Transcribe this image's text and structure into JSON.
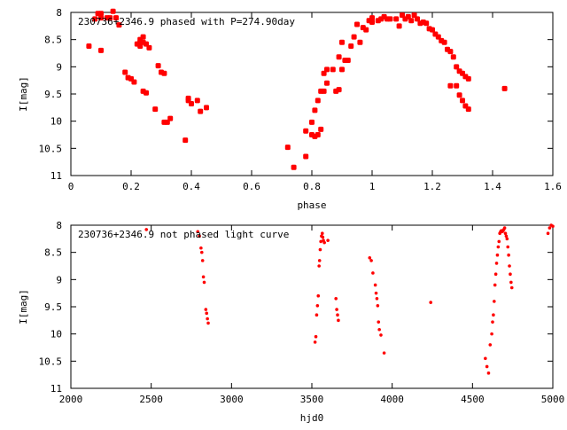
{
  "point_color": "#ff0000",
  "axis_color": "#000000",
  "chart_data": [
    {
      "type": "scatter",
      "title": "230736+2346.9 phased with P=274.90day",
      "xlabel": "phase",
      "ylabel": "I[mag]",
      "xlim": [
        0,
        1.6
      ],
      "ylim": [
        11,
        8
      ],
      "y_inverted": true,
      "grid": false,
      "marker": "large",
      "xticks": [
        "0",
        "0.2",
        "0.4",
        "0.6",
        "0.8",
        "1",
        "1.2",
        "1.4",
        "1.6"
      ],
      "yticks": [
        "8",
        "8.5",
        "9",
        "9.5",
        "10",
        "10.5",
        "11"
      ],
      "xtick_values": [
        0,
        0.2,
        0.4,
        0.6,
        0.8,
        1.0,
        1.2,
        1.4,
        1.6
      ],
      "ytick_values": [
        8,
        8.5,
        9,
        9.5,
        10,
        10.5,
        11
      ],
      "points": [
        [
          0.06,
          8.62
        ],
        [
          0.08,
          8.12
        ],
        [
          0.09,
          8.02
        ],
        [
          0.1,
          8.02
        ],
        [
          0.1,
          8.1
        ],
        [
          0.1,
          8.7
        ],
        [
          0.12,
          8.1
        ],
        [
          0.13,
          8.1
        ],
        [
          0.14,
          7.98
        ],
        [
          0.15,
          8.1
        ],
        [
          0.16,
          8.23
        ],
        [
          0.18,
          9.1
        ],
        [
          0.19,
          9.2
        ],
        [
          0.2,
          9.22
        ],
        [
          0.21,
          9.28
        ],
        [
          0.22,
          8.58
        ],
        [
          0.23,
          8.5
        ],
        [
          0.23,
          8.62
        ],
        [
          0.23,
          8.55
        ],
        [
          0.24,
          8.45
        ],
        [
          0.24,
          8.55
        ],
        [
          0.24,
          9.45
        ],
        [
          0.25,
          8.58
        ],
        [
          0.25,
          9.48
        ],
        [
          0.26,
          8.65
        ],
        [
          0.28,
          9.78
        ],
        [
          0.29,
          8.98
        ],
        [
          0.3,
          9.1
        ],
        [
          0.31,
          10.02
        ],
        [
          0.31,
          9.12
        ],
        [
          0.32,
          10.02
        ],
        [
          0.33,
          9.95
        ],
        [
          0.38,
          10.35
        ],
        [
          0.39,
          9.58
        ],
        [
          0.39,
          9.62
        ],
        [
          0.4,
          9.68
        ],
        [
          0.42,
          9.62
        ],
        [
          0.43,
          9.82
        ],
        [
          0.45,
          9.75
        ],
        [
          0.72,
          10.48
        ],
        [
          0.74,
          10.85
        ],
        [
          0.78,
          10.65
        ],
        [
          0.78,
          10.18
        ],
        [
          0.8,
          10.02
        ],
        [
          0.8,
          10.25
        ],
        [
          0.81,
          10.28
        ],
        [
          0.81,
          9.8
        ],
        [
          0.82,
          9.62
        ],
        [
          0.82,
          10.25
        ],
        [
          0.83,
          10.15
        ],
        [
          0.83,
          9.45
        ],
        [
          0.84,
          9.45
        ],
        [
          0.84,
          9.12
        ],
        [
          0.85,
          9.3
        ],
        [
          0.85,
          9.05
        ],
        [
          0.87,
          9.05
        ],
        [
          0.88,
          9.45
        ],
        [
          0.89,
          9.42
        ],
        [
          0.89,
          8.82
        ],
        [
          0.9,
          8.55
        ],
        [
          0.9,
          9.05
        ],
        [
          0.91,
          8.88
        ],
        [
          0.92,
          8.88
        ],
        [
          0.93,
          8.62
        ],
        [
          0.94,
          8.45
        ],
        [
          0.95,
          8.22
        ],
        [
          0.96,
          8.55
        ],
        [
          0.97,
          8.28
        ],
        [
          0.98,
          8.32
        ],
        [
          0.99,
          8.15
        ],
        [
          1.0,
          8.1
        ],
        [
          1.0,
          8.18
        ],
        [
          1.02,
          8.15
        ],
        [
          1.03,
          8.12
        ],
        [
          1.04,
          8.08
        ],
        [
          1.05,
          8.12
        ],
        [
          1.06,
          8.12
        ],
        [
          1.08,
          8.12
        ],
        [
          1.09,
          8.25
        ],
        [
          1.1,
          8.05
        ],
        [
          1.11,
          8.12
        ],
        [
          1.12,
          8.08
        ],
        [
          1.13,
          8.15
        ],
        [
          1.14,
          8.05
        ],
        [
          1.15,
          8.12
        ],
        [
          1.16,
          8.2
        ],
        [
          1.17,
          8.18
        ],
        [
          1.18,
          8.2
        ],
        [
          1.19,
          8.3
        ],
        [
          1.2,
          8.32
        ],
        [
          1.21,
          8.4
        ],
        [
          1.22,
          8.45
        ],
        [
          1.23,
          8.52
        ],
        [
          1.24,
          8.55
        ],
        [
          1.25,
          8.68
        ],
        [
          1.26,
          8.72
        ],
        [
          1.26,
          9.35
        ],
        [
          1.27,
          8.82
        ],
        [
          1.28,
          9.35
        ],
        [
          1.28,
          9.0
        ],
        [
          1.29,
          9.52
        ],
        [
          1.29,
          9.08
        ],
        [
          1.3,
          9.62
        ],
        [
          1.3,
          9.12
        ],
        [
          1.31,
          9.72
        ],
        [
          1.31,
          9.18
        ],
        [
          1.32,
          9.78
        ],
        [
          1.32,
          9.22
        ],
        [
          1.44,
          9.4
        ]
      ]
    },
    {
      "type": "scatter",
      "title": "230736+2346.9 not phased light curve",
      "xlabel": "hjd0",
      "ylabel": "I[mag]",
      "xlim": [
        2000,
        5000
      ],
      "ylim": [
        11,
        8
      ],
      "y_inverted": true,
      "grid": false,
      "marker": "small",
      "xticks": [
        "2000",
        "2500",
        "3000",
        "3500",
        "4000",
        "4500",
        "5000"
      ],
      "yticks": [
        "8",
        "8.5",
        "9",
        "9.5",
        "10",
        "10.5",
        "11"
      ],
      "xtick_values": [
        2000,
        2500,
        3000,
        3500,
        4000,
        4500,
        5000
      ],
      "ytick_values": [
        8,
        8.5,
        9,
        9.5,
        10,
        10.5,
        11
      ],
      "points": [
        [
          2470,
          8.08
        ],
        [
          2790,
          8.12
        ],
        [
          2800,
          8.2
        ],
        [
          2810,
          8.42
        ],
        [
          2815,
          8.5
        ],
        [
          2820,
          8.65
        ],
        [
          2825,
          8.95
        ],
        [
          2830,
          9.05
        ],
        [
          2840,
          9.55
        ],
        [
          2845,
          9.62
        ],
        [
          2850,
          9.72
        ],
        [
          2855,
          9.8
        ],
        [
          3520,
          10.15
        ],
        [
          3525,
          10.05
        ],
        [
          3530,
          9.65
        ],
        [
          3535,
          9.48
        ],
        [
          3540,
          9.3
        ],
        [
          3545,
          8.75
        ],
        [
          3548,
          8.65
        ],
        [
          3552,
          8.45
        ],
        [
          3556,
          8.3
        ],
        [
          3560,
          8.2
        ],
        [
          3565,
          8.15
        ],
        [
          3568,
          8.22
        ],
        [
          3572,
          8.28
        ],
        [
          3578,
          8.32
        ],
        [
          3600,
          8.28
        ],
        [
          3650,
          9.35
        ],
        [
          3655,
          9.55
        ],
        [
          3660,
          9.65
        ],
        [
          3665,
          9.75
        ],
        [
          3860,
          8.6
        ],
        [
          3870,
          8.65
        ],
        [
          3880,
          8.88
        ],
        [
          3895,
          9.1
        ],
        [
          3900,
          9.25
        ],
        [
          3905,
          9.35
        ],
        [
          3910,
          9.48
        ],
        [
          3915,
          9.78
        ],
        [
          3920,
          9.92
        ],
        [
          3930,
          10.02
        ],
        [
          3950,
          10.35
        ],
        [
          4240,
          9.42
        ],
        [
          4580,
          10.45
        ],
        [
          4590,
          10.6
        ],
        [
          4600,
          10.72
        ],
        [
          4610,
          10.2
        ],
        [
          4620,
          10.0
        ],
        [
          4625,
          9.78
        ],
        [
          4630,
          9.65
        ],
        [
          4635,
          9.4
        ],
        [
          4640,
          9.1
        ],
        [
          4645,
          8.9
        ],
        [
          4650,
          8.7
        ],
        [
          4655,
          8.55
        ],
        [
          4660,
          8.4
        ],
        [
          4665,
          8.3
        ],
        [
          4670,
          8.15
        ],
        [
          4675,
          8.12
        ],
        [
          4680,
          8.1
        ],
        [
          4685,
          8.12
        ],
        [
          4690,
          8.1
        ],
        [
          4695,
          8.08
        ],
        [
          4700,
          8.05
        ],
        [
          4705,
          8.15
        ],
        [
          4710,
          8.2
        ],
        [
          4715,
          8.25
        ],
        [
          4720,
          8.4
        ],
        [
          4725,
          8.55
        ],
        [
          4730,
          8.75
        ],
        [
          4735,
          8.9
        ],
        [
          4740,
          9.05
        ],
        [
          4745,
          9.15
        ],
        [
          4970,
          8.15
        ],
        [
          4980,
          8.05
        ],
        [
          4990,
          8.0
        ],
        [
          5000,
          8.02
        ]
      ]
    }
  ]
}
